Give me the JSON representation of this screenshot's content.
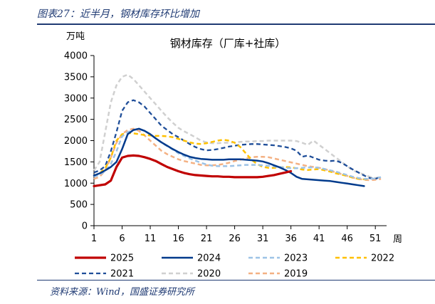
{
  "header": {
    "caption": "图表27：近半月，钢材库存环比增加"
  },
  "footer": {
    "source": "资料来源：Wind，国盛证券研究所"
  },
  "chart_data": {
    "type": "line",
    "title": "钢材库存（厂库+社库）",
    "ylabel": "万吨",
    "xlabel": "周",
    "ylim": [
      0,
      4000
    ],
    "xlim": [
      1,
      53
    ],
    "yticks": [
      "0",
      "500",
      "1000",
      "1500",
      "2000",
      "2500",
      "3000",
      "3500",
      "4000"
    ],
    "xticks": [
      "1",
      "6",
      "11",
      "16",
      "21",
      "26",
      "31",
      "36",
      "41",
      "46",
      "51"
    ],
    "grid": false,
    "legend_position": "bottom",
    "series": [
      {
        "name": "2025",
        "color": "#c00000",
        "style": "solid",
        "width": 3.2,
        "x": [
          1,
          2,
          3,
          4,
          5,
          6,
          7,
          8,
          9,
          10,
          11,
          12,
          13,
          14,
          15,
          16,
          17,
          18,
          19,
          20,
          21,
          22,
          23,
          24,
          25,
          26,
          27,
          28,
          29,
          30,
          31,
          32,
          33,
          34,
          35,
          36
        ],
        "y": [
          930,
          950,
          970,
          1060,
          1380,
          1600,
          1640,
          1650,
          1640,
          1610,
          1570,
          1520,
          1450,
          1380,
          1330,
          1280,
          1240,
          1210,
          1190,
          1180,
          1170,
          1160,
          1160,
          1150,
          1150,
          1140,
          1140,
          1140,
          1140,
          1140,
          1150,
          1170,
          1190,
          1220,
          1250,
          1280
        ]
      },
      {
        "name": "2024",
        "color": "#003a8c",
        "style": "solid",
        "width": 2.5,
        "x": [
          1,
          2,
          3,
          4,
          5,
          6,
          7,
          8,
          9,
          10,
          11,
          12,
          13,
          14,
          15,
          16,
          17,
          18,
          19,
          20,
          21,
          22,
          23,
          24,
          25,
          26,
          27,
          28,
          29,
          30,
          31,
          32,
          33,
          34,
          35,
          36,
          37,
          38,
          39,
          40,
          41,
          42,
          43,
          44,
          45,
          46,
          47,
          48,
          49
        ],
        "y": [
          1180,
          1230,
          1300,
          1380,
          1500,
          1800,
          2150,
          2250,
          2280,
          2230,
          2150,
          2050,
          1960,
          1880,
          1800,
          1730,
          1670,
          1620,
          1590,
          1570,
          1560,
          1550,
          1550,
          1550,
          1560,
          1560,
          1560,
          1550,
          1540,
          1530,
          1510,
          1470,
          1420,
          1370,
          1310,
          1240,
          1150,
          1100,
          1090,
          1080,
          1070,
          1060,
          1050,
          1030,
          1010,
          990,
          970,
          950,
          930
        ]
      },
      {
        "name": "2023",
        "color": "#9dc3e6",
        "style": "dashed",
        "width": 2.5,
        "x": [
          1,
          2,
          3,
          4,
          5,
          6,
          7,
          8,
          9,
          10,
          11,
          12,
          13,
          14,
          15,
          16,
          17,
          18,
          19,
          20,
          21,
          22,
          23,
          24,
          25,
          26,
          27,
          28,
          29,
          30,
          31,
          32,
          33,
          34,
          35,
          36,
          37,
          38,
          39,
          40,
          41,
          42,
          43,
          44,
          45,
          46,
          47,
          48,
          49,
          50,
          51,
          52
        ],
        "y": [
          1150,
          1200,
          1280,
          1450,
          1750,
          2100,
          2200,
          2250,
          2270,
          2230,
          2150,
          2050,
          1950,
          1870,
          1790,
          1700,
          1640,
          1580,
          1530,
          1480,
          1440,
          1410,
          1400,
          1400,
          1400,
          1410,
          1420,
          1430,
          1430,
          1430,
          1420,
          1410,
          1390,
          1380,
          1360,
          1350,
          1350,
          1360,
          1370,
          1370,
          1360,
          1330,
          1300,
          1270,
          1230,
          1190,
          1150,
          1120,
          1100,
          1100,
          1110,
          1140
        ]
      },
      {
        "name": "2022",
        "color": "#ffc000",
        "style": "dashed",
        "width": 2.5,
        "x": [
          1,
          2,
          3,
          4,
          5,
          6,
          7,
          8,
          9,
          10,
          11,
          12,
          13,
          14,
          15,
          16,
          17,
          18,
          19,
          20,
          21,
          22,
          23,
          24,
          25,
          26,
          27,
          28,
          29,
          30,
          31,
          32,
          33,
          34,
          35,
          36,
          37,
          38,
          39,
          40,
          41,
          42,
          43,
          44,
          45,
          46,
          47,
          48,
          49,
          50
        ],
        "y": [
          1170,
          1230,
          1350,
          1600,
          2000,
          2150,
          2180,
          2170,
          2150,
          2130,
          2120,
          2110,
          2110,
          2100,
          2080,
          2040,
          2000,
          1960,
          1930,
          1920,
          1940,
          1970,
          2000,
          2020,
          2000,
          1950,
          1850,
          1700,
          1550,
          1450,
          1380,
          1360,
          1360,
          1370,
          1380,
          1370,
          1350,
          1320,
          1310,
          1320,
          1330,
          1300,
          1270,
          1230,
          1200,
          1170,
          1130,
          1100,
          1090,
          1090
        ]
      },
      {
        "name": "2021",
        "color": "#1f4e99",
        "style": "dashed",
        "width": 2.3,
        "x": [
          1,
          2,
          3,
          4,
          5,
          6,
          7,
          8,
          9,
          10,
          11,
          12,
          13,
          14,
          15,
          16,
          17,
          18,
          19,
          20,
          21,
          22,
          23,
          24,
          25,
          26,
          27,
          28,
          29,
          30,
          31,
          32,
          33,
          34,
          35,
          36,
          37,
          38,
          39,
          40,
          41,
          42,
          43,
          44,
          45,
          46,
          47,
          48,
          49,
          50,
          51,
          52
        ],
        "y": [
          1250,
          1300,
          1400,
          1750,
          2200,
          2700,
          2900,
          2950,
          2900,
          2800,
          2650,
          2500,
          2350,
          2250,
          2150,
          2080,
          2000,
          1920,
          1850,
          1800,
          1770,
          1780,
          1800,
          1830,
          1860,
          1880,
          1900,
          1910,
          1920,
          1920,
          1910,
          1900,
          1890,
          1870,
          1850,
          1820,
          1760,
          1620,
          1650,
          1600,
          1550,
          1530,
          1520,
          1530,
          1480,
          1400,
          1320,
          1250,
          1180,
          1120,
          1100,
          1150
        ]
      },
      {
        "name": "2020",
        "color": "#d0d0d0",
        "style": "dashed",
        "width": 2.5,
        "x": [
          1,
          2,
          3,
          4,
          5,
          6,
          7,
          8,
          9,
          10,
          11,
          12,
          13,
          14,
          15,
          16,
          17,
          18,
          19,
          20,
          21,
          22,
          23,
          24,
          25,
          26,
          27,
          28,
          29,
          30,
          31,
          32,
          33,
          34,
          35,
          36,
          37,
          38,
          39,
          40,
          41,
          42,
          43,
          44,
          45,
          46,
          47,
          48,
          49,
          50,
          51,
          52
        ],
        "y": [
          1300,
          1500,
          2200,
          2900,
          3300,
          3500,
          3550,
          3450,
          3300,
          3150,
          3000,
          2850,
          2700,
          2550,
          2420,
          2300,
          2220,
          2150,
          2080,
          2000,
          1960,
          1940,
          1940,
          1950,
          1950,
          1960,
          1970,
          1980,
          1980,
          1990,
          1990,
          2000,
          2000,
          2000,
          2000,
          2000,
          1990,
          1950,
          1900,
          2000,
          1900,
          1800,
          1700,
          1600,
          1500,
          1400,
          1300,
          1250,
          1200,
          1150,
          1120,
          1150
        ]
      },
      {
        "name": "2019",
        "color": "#f4b183",
        "style": "dashed",
        "width": 2.5,
        "x": [
          1,
          2,
          3,
          4,
          5,
          6,
          7,
          8,
          9,
          10,
          11,
          12,
          13,
          14,
          15,
          16,
          17,
          18,
          19,
          20,
          21,
          22,
          23,
          24,
          25,
          26,
          27,
          28,
          29,
          30,
          31,
          32,
          33,
          34,
          35,
          36,
          37,
          38,
          39,
          40,
          41,
          42,
          43,
          44,
          45,
          46,
          47,
          48,
          49,
          50,
          51,
          52
        ],
        "y": [
          1100,
          1150,
          1300,
          1600,
          1950,
          2150,
          2250,
          2280,
          2230,
          2120,
          2000,
          1880,
          1760,
          1680,
          1620,
          1560,
          1520,
          1490,
          1460,
          1430,
          1420,
          1420,
          1430,
          1450,
          1480,
          1520,
          1550,
          1580,
          1610,
          1620,
          1620,
          1610,
          1580,
          1550,
          1520,
          1490,
          1460,
          1430,
          1400,
          1380,
          1360,
          1330,
          1290,
          1250,
          1210,
          1170,
          1130,
          1100,
          1080,
          1070,
          1080,
          1100
        ]
      }
    ]
  }
}
